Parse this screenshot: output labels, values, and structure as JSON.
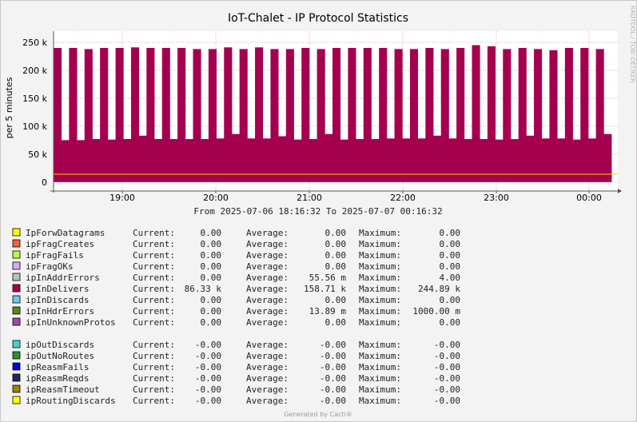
{
  "chart_data": {
    "type": "bar",
    "title": "IoT-Chalet - IP Protocol Statistics",
    "ylabel": "per 5 minutes",
    "y_ticks": [
      "0",
      "50 k",
      "100 k",
      "150 k",
      "200 k",
      "250 k"
    ],
    "y_tick_values": [
      0,
      50000,
      100000,
      150000,
      200000,
      250000
    ],
    "ylim": [
      -16000,
      270000
    ],
    "x_ticks": [
      "19:00",
      "20:00",
      "21:00",
      "22:00",
      "23:00",
      "00:00"
    ],
    "grid": true,
    "series": [
      {
        "name": "ipInDelivers",
        "color": "#a50050",
        "values": [
          240000,
          75000,
          240000,
          75000,
          238000,
          77000,
          240000,
          76000,
          240000,
          77000,
          241000,
          83000,
          240000,
          77000,
          240000,
          77000,
          240000,
          77000,
          238000,
          77000,
          238000,
          78000,
          241000,
          86000,
          238000,
          78000,
          241000,
          78000,
          238000,
          82000,
          238000,
          76000,
          240000,
          77000,
          238000,
          86000,
          240000,
          76000,
          240000,
          77000,
          240000,
          77000,
          240000,
          78000,
          238000,
          78000,
          238000,
          78000,
          240000,
          83000,
          238000,
          78000,
          240000,
          77000,
          245000,
          77000,
          243000,
          76000,
          238000,
          77000,
          240000,
          83000,
          238000,
          78000,
          236000,
          78000,
          240000,
          76000,
          240000,
          78000,
          238000,
          86000
        ]
      }
    ]
  },
  "legend_top": [
    {
      "color": "#ffff00",
      "name": "IpForwDatagrams",
      "current": "0.00",
      "average": "0.00",
      "maximum": "0.00"
    },
    {
      "color": "#f26430",
      "name": "ipFragCreates",
      "current": "0.00",
      "average": "0.00",
      "maximum": "0.00"
    },
    {
      "color": "#b7ff3b",
      "name": "ipFragFails",
      "current": "0.00",
      "average": "0.00",
      "maximum": "0.00"
    },
    {
      "color": "#d7aee6",
      "name": "ipFragOKs",
      "current": "0.00",
      "average": "0.00",
      "maximum": "0.00"
    },
    {
      "color": "#b5c4c0",
      "name": "ipInAddrErrors",
      "current": "0.00",
      "average": "55.56 m",
      "maximum": "4.00"
    },
    {
      "color": "#a50050",
      "name": "ipInDelivers",
      "current": "86.33 k",
      "average": "158.71 k",
      "maximum": "244.89 k"
    },
    {
      "color": "#6ec6f0",
      "name": "ipInDiscards",
      "current": "0.00",
      "average": "0.00",
      "maximum": "0.00"
    },
    {
      "color": "#5a8a15",
      "name": "ipInHdrErrors",
      "current": "0.00",
      "average": "13.89 m",
      "maximum": "1000.00 m"
    },
    {
      "color": "#9c4aa4",
      "name": "ipInUnknownProtos",
      "current": "0.00",
      "average": "0.00",
      "maximum": "0.00"
    }
  ],
  "legend_bottom": [
    {
      "color": "#48d1cc",
      "name": "ipOutDiscards",
      "current": "-0.00",
      "average": "-0.00",
      "maximum": "-0.00"
    },
    {
      "color": "#2e8b3a",
      "name": "ipOutNoRoutes",
      "current": "-0.00",
      "average": "-0.00",
      "maximum": "-0.00"
    },
    {
      "color": "#0000dd",
      "name": "ipReasmFails",
      "current": "-0.00",
      "average": "-0.00",
      "maximum": "-0.00"
    },
    {
      "color": "#262659",
      "name": "ipReasmReqds",
      "current": "-0.00",
      "average": "-0.00",
      "maximum": "-0.00"
    },
    {
      "color": "#a08000",
      "name": "ipReasmTimeout",
      "current": "-0.00",
      "average": "-0.00",
      "maximum": "-0.00"
    },
    {
      "color": "#ffff00",
      "name": "ipRoutingDiscards",
      "current": "-0.00",
      "average": "-0.00",
      "maximum": "-0.00"
    }
  ],
  "legend_labels": {
    "current": "Current:",
    "average": "Average:",
    "maximum": "Maximum:"
  },
  "time_range": "From 2025-07-06 18:16:32 To 2025-07-07 00:16:32",
  "footer": "Generated by Cacti®",
  "side_text": "RRDTOOL / TOBI OETIKER"
}
